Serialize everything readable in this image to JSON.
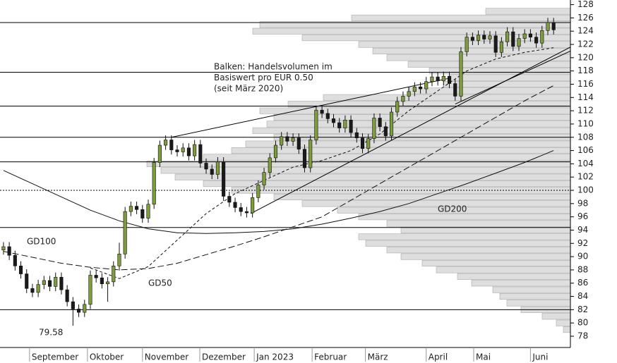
{
  "chart_data": {
    "type": "candlestick",
    "annotation": [
      "Balken: Handelsvolumen im",
      "Basiswert pro EUR 0.50",
      "(seit März 2020)"
    ],
    "x": [
      0,
      1,
      2,
      3,
      4,
      5,
      6,
      7,
      8,
      9,
      10,
      11,
      12,
      13,
      14,
      15,
      16,
      17,
      18,
      19,
      20,
      21,
      22,
      23,
      24,
      25,
      26,
      27,
      28,
      29,
      30,
      31,
      32,
      33,
      34,
      35,
      36,
      37,
      38,
      39,
      40,
      41,
      42,
      43,
      44,
      45,
      46,
      47,
      48,
      49,
      50,
      51,
      52,
      53,
      54,
      55,
      56,
      57,
      58,
      59,
      60,
      61,
      62,
      63,
      64,
      65,
      66,
      67,
      68,
      69,
      70,
      71,
      72,
      73,
      74,
      75,
      76,
      77,
      78,
      79,
      80,
      81,
      82,
      83,
      84,
      85,
      86,
      87,
      88,
      89,
      90,
      91,
      92,
      93,
      94,
      95
    ],
    "open": [
      91.0,
      91.5,
      90.2,
      88.6,
      87.4,
      85.2,
      84.6,
      85.8,
      86.4,
      85.5,
      86.9,
      85.0,
      83.2,
      82.1,
      81.6,
      82.8,
      87.2,
      86.8,
      85.9,
      86.2,
      88.6,
      90.4,
      96.8,
      97.6,
      97.1,
      95.8,
      97.9,
      104.2,
      106.8,
      107.6,
      106.1,
      105.8,
      106.4,
      105.2,
      106.9,
      104.1,
      103.2,
      102.4,
      104.3,
      99.1,
      98.2,
      97.4,
      96.8,
      96.6,
      98.9,
      100.8,
      102.7,
      104.9,
      106.8,
      108.1,
      107.4,
      107.9,
      106.2,
      103.4,
      107.6,
      112.1,
      111.6,
      110.8,
      110.2,
      109.4,
      110.6,
      108.7,
      107.9,
      106.3,
      107.8,
      110.9,
      109.6,
      108.2,
      111.8,
      113.4,
      114.2,
      114.9,
      115.6,
      115.3,
      116.4,
      117.1,
      116.5,
      117.2,
      116.1,
      114.2,
      120.9,
      123.1,
      122.6,
      123.4,
      122.8,
      123.3,
      120.8,
      122.4,
      123.9,
      121.7,
      122.9,
      123.6,
      123.1,
      122.2,
      124.1,
      125.3
    ],
    "high": [
      92.2,
      92.2,
      90.9,
      89.3,
      88.1,
      85.9,
      86.5,
      87.1,
      87.1,
      87.6,
      87.6,
      85.7,
      83.9,
      82.8,
      83.5,
      87.9,
      87.9,
      87.5,
      86.9,
      89.3,
      92.1,
      97.5,
      98.3,
      98.3,
      97.8,
      98.6,
      104.9,
      107.5,
      108.3,
      108.3,
      106.8,
      107.1,
      107.1,
      107.6,
      107.6,
      104.8,
      103.9,
      105.0,
      105.0,
      99.8,
      98.9,
      98.1,
      97.5,
      99.6,
      101.5,
      103.4,
      105.6,
      107.5,
      108.8,
      108.8,
      108.6,
      108.6,
      106.9,
      108.3,
      112.8,
      112.8,
      112.3,
      111.5,
      110.9,
      111.3,
      111.3,
      109.4,
      108.6,
      108.5,
      111.6,
      111.6,
      110.3,
      112.5,
      114.1,
      114.9,
      115.6,
      116.3,
      116.3,
      117.1,
      117.8,
      117.8,
      117.9,
      117.9,
      116.8,
      121.6,
      123.8,
      123.8,
      124.1,
      124.1,
      124.0,
      124.0,
      123.1,
      124.6,
      124.6,
      123.6,
      124.3,
      124.3,
      123.8,
      124.8,
      126.0,
      126.0
    ],
    "low": [
      90.3,
      89.5,
      87.9,
      86.7,
      84.5,
      83.9,
      83.9,
      85.1,
      84.8,
      84.8,
      84.3,
      82.5,
      79.58,
      80.9,
      80.9,
      82.1,
      86.1,
      85.2,
      83.2,
      85.5,
      87.9,
      89.7,
      96.1,
      96.4,
      95.1,
      95.1,
      97.2,
      103.5,
      106.1,
      105.4,
      105.1,
      105.1,
      104.5,
      104.5,
      103.4,
      102.5,
      101.7,
      101.7,
      98.4,
      97.5,
      96.7,
      96.1,
      95.9,
      95.9,
      98.2,
      100.1,
      102.0,
      104.2,
      106.1,
      106.7,
      106.7,
      105.5,
      102.7,
      102.7,
      106.9,
      110.9,
      110.1,
      109.5,
      108.7,
      108.7,
      108.0,
      107.2,
      105.6,
      105.6,
      107.1,
      108.9,
      107.5,
      107.5,
      111.1,
      112.7,
      113.5,
      114.2,
      114.6,
      114.6,
      115.7,
      115.8,
      115.8,
      115.4,
      113.5,
      113.5,
      120.2,
      121.9,
      121.9,
      122.1,
      122.1,
      120.1,
      120.1,
      121.7,
      121.0,
      121.0,
      122.2,
      122.4,
      121.5,
      121.5,
      123.4,
      123.5
    ],
    "close": [
      91.5,
      90.2,
      88.6,
      87.4,
      85.2,
      84.6,
      85.8,
      86.4,
      85.5,
      86.9,
      85.0,
      83.2,
      82.1,
      81.6,
      82.8,
      87.2,
      86.8,
      85.9,
      86.2,
      88.6,
      90.4,
      96.8,
      97.6,
      97.1,
      95.8,
      97.9,
      104.2,
      106.8,
      107.6,
      106.1,
      105.8,
      106.4,
      105.2,
      106.9,
      104.1,
      103.2,
      102.4,
      104.3,
      99.1,
      98.2,
      97.4,
      96.8,
      96.6,
      98.9,
      100.8,
      102.7,
      104.9,
      106.8,
      108.1,
      107.4,
      107.9,
      106.2,
      103.4,
      107.6,
      112.1,
      111.6,
      110.8,
      110.2,
      109.4,
      110.6,
      108.7,
      107.9,
      106.3,
      107.8,
      110.9,
      109.6,
      108.2,
      111.8,
      113.4,
      114.2,
      114.9,
      115.6,
      115.3,
      116.4,
      117.1,
      116.5,
      117.2,
      116.1,
      114.2,
      120.9,
      123.1,
      122.6,
      123.4,
      122.8,
      123.3,
      120.8,
      122.4,
      123.9,
      121.7,
      122.9,
      123.6,
      123.1,
      122.2,
      124.1,
      125.3,
      124.2
    ],
    "up_color": "#7f9c3c",
    "down_color": "#1a1a1a",
    "xlim": [
      -0.6,
      97.9
    ],
    "xticks": [
      {
        "value": 4.5,
        "label": "September"
      },
      {
        "value": 14.5,
        "label": "Oktober"
      },
      {
        "value": 24,
        "label": "November"
      },
      {
        "value": 33.9,
        "label": "Dezember"
      },
      {
        "value": 43.3,
        "label": "Jan 2023"
      },
      {
        "value": 53.3,
        "label": "Februar"
      },
      {
        "value": 62.5,
        "label": "März"
      },
      {
        "value": 73,
        "label": "April"
      },
      {
        "value": 81.2,
        "label": "Mai"
      },
      {
        "value": 91,
        "label": "Juni"
      }
    ],
    "ylim": [
      76.3,
      128.7
    ],
    "yticks": [
      78,
      80,
      82,
      84,
      86,
      88,
      90,
      92,
      94,
      96,
      98,
      100,
      102,
      104,
      106,
      108,
      110,
      112,
      114,
      116,
      118,
      120,
      122,
      124,
      126,
      128
    ],
    "volume_profile": {
      "color": "#dedede",
      "levels": [
        127,
        126,
        125,
        124,
        123,
        122,
        121,
        120,
        119,
        118,
        117,
        116,
        115,
        114,
        113,
        112,
        111,
        110,
        109,
        108,
        107,
        106,
        105,
        104,
        103,
        102,
        101,
        100,
        99,
        98,
        97,
        96,
        95,
        94,
        93,
        92,
        91,
        90,
        89,
        88,
        87,
        86,
        85,
        84,
        83,
        82,
        81,
        80,
        79
      ],
      "values": [
        120,
        310,
        440,
        450,
        380,
        300,
        280,
        260,
        230,
        200,
        170,
        180,
        230,
        350,
        400,
        440,
        420,
        430,
        450,
        420,
        460,
        480,
        520,
        600,
        580,
        560,
        520,
        480,
        420,
        380,
        330,
        300,
        260,
        240,
        300,
        290,
        260,
        240,
        210,
        190,
        160,
        140,
        110,
        100,
        90,
        70,
        40,
        20,
        10
      ]
    },
    "hlines": [
      125.3,
      117.8,
      112.7,
      108,
      104.3,
      94.4,
      82
    ],
    "dotted_hline": 100,
    "trendlines": [
      {
        "x": [
          29,
          77
        ],
        "y": [
          108,
          116.9
        ]
      },
      {
        "x": [
          42.7,
          97.9
        ],
        "y": [
          96.5,
          121.6
        ]
      },
      {
        "x": [
          78,
          97.9
        ],
        "y": [
          113,
          121
        ]
      }
    ],
    "moving_averages": [
      {
        "name": "GD200",
        "x": [
          0,
          5,
          10,
          15,
          20,
          25,
          30,
          35,
          40,
          45,
          50,
          55,
          60,
          65,
          70,
          75,
          80,
          85,
          90,
          95
        ],
        "values": [
          103.0,
          101.0,
          99.0,
          97.0,
          95.4,
          94.2,
          93.6,
          93.5,
          93.6,
          93.8,
          94.2,
          94.9,
          95.8,
          96.8,
          98.0,
          99.5,
          101.0,
          102.6,
          104.2,
          106.0
        ]
      },
      {
        "name": "GD100",
        "x": [
          0,
          5,
          10,
          15,
          20,
          25,
          30,
          35,
          40,
          45,
          50,
          55,
          60,
          65,
          70,
          75,
          80,
          85,
          90,
          95
        ],
        "values": [
          90.8,
          89.9,
          89.0,
          88.4,
          88.0,
          88.2,
          89.0,
          90.3,
          91.6,
          93.0,
          94.5,
          96.0,
          98.5,
          101.0,
          103.5,
          106.0,
          108.5,
          111.0,
          113.5,
          115.8
        ]
      },
      {
        "name": "GD50",
        "x": [
          15,
          20,
          25,
          30,
          35,
          40,
          45,
          50,
          55,
          60,
          65,
          70,
          75,
          80,
          85,
          90,
          95
        ],
        "values": [
          88.3,
          86.7,
          88.5,
          92.5,
          96.5,
          99.5,
          101.5,
          103.5,
          104.5,
          106.0,
          108.5,
          112.0,
          115.0,
          118.0,
          119.8,
          120.8,
          121.5
        ]
      }
    ],
    "low_label": {
      "x": 12,
      "value": 79.58
    }
  }
}
